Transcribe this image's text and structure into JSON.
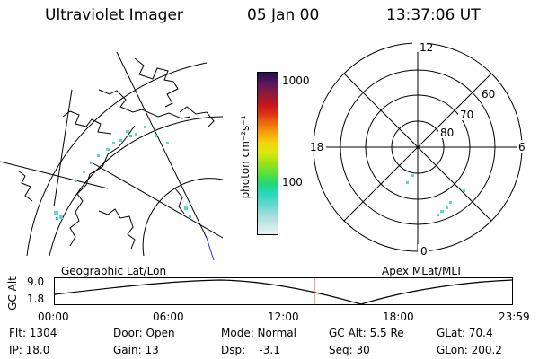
{
  "header": {
    "instrument": "Ultraviolet Imager",
    "date": "05 Jan 00",
    "time": "13:37:06 UT"
  },
  "colorbar": {
    "unit_label": "photon cm⁻²s⁻¹",
    "ticks": [
      "1000",
      "100"
    ],
    "colors": [
      "#e8f2f2",
      "#c8e6e6",
      "#9edcdc",
      "#5ed8cc",
      "#26d8bc",
      "#22d878",
      "#5ae03a",
      "#9ae21e",
      "#d8e810",
      "#f2d60c",
      "#f6a40a",
      "#ef6a0c",
      "#dc2e14",
      "#bc1420",
      "#881c3c",
      "#541660",
      "#24104a"
    ]
  },
  "geo_map": {
    "label": "Geographic Lat/Lon"
  },
  "polar_plot": {
    "label": "Apex  MLat/MLT",
    "mlt_labels": [
      "12",
      "18",
      "6",
      "0"
    ],
    "lat_labels": [
      "60",
      "70",
      "80"
    ]
  },
  "timeline": {
    "axis_title": "GC Alt",
    "y_ticks": [
      "9.0",
      "1.8"
    ],
    "x_ticks": [
      "00:00",
      "06:00",
      "12:00",
      "18:00",
      "23:59"
    ],
    "current_time_fraction": 0.5675,
    "curve_color": "#000000",
    "marker_color": "#cc0000"
  },
  "info": {
    "flt": "Flt: 1304",
    "door": "Door: Open",
    "mode": "Mode: Normal",
    "gc_alt": "GC Alt: 5.5 Re",
    "glat": "GLat:  70.4",
    "ip": "IP: 18.0",
    "gain": "Gain: 13",
    "dsp": "Dsp:    -3.1",
    "seq": "Seq: 30",
    "glon": "GLon: 200.2"
  }
}
